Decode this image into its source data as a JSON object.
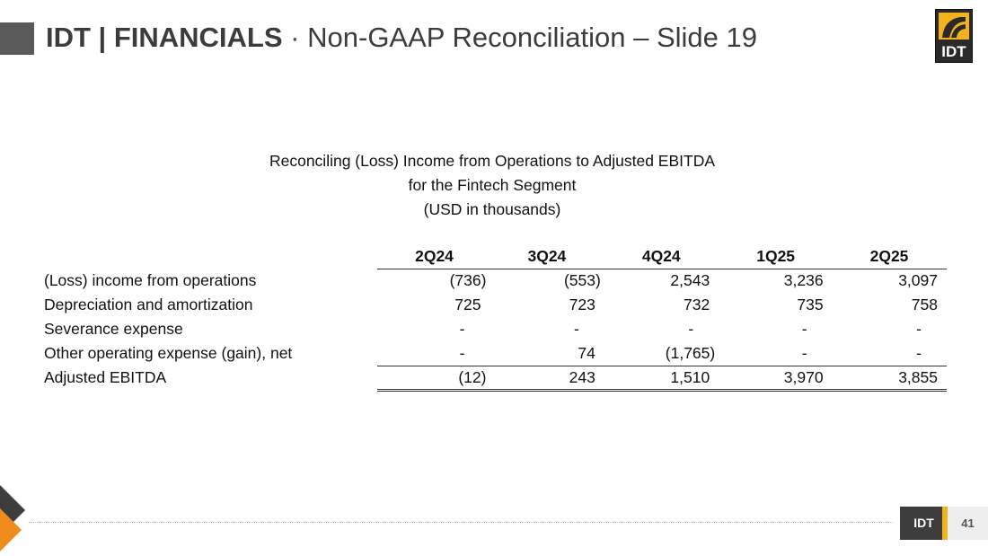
{
  "header": {
    "title_bold": "IDT | FINANCIALS",
    "title_sep": "·",
    "title_sub": "Non-GAAP Reconciliation – Slide 19"
  },
  "logo": {
    "text": "IDT",
    "icon": "idt-logo-icon"
  },
  "table": {
    "title_lines": [
      "Reconciling (Loss) Income from Operations to Adjusted EBITDA",
      "for the Fintech Segment",
      "(USD in thousands)"
    ],
    "columns": [
      "2Q24",
      "3Q24",
      "4Q24",
      "1Q25",
      "2Q25"
    ],
    "rows": [
      {
        "label": "(Loss) income from operations",
        "values": [
          "(736)",
          "(553)",
          "2,543",
          "3,236",
          "3,097"
        ]
      },
      {
        "label": "Depreciation and amortization",
        "values": [
          "725",
          "723",
          "732",
          "735",
          "758"
        ]
      },
      {
        "label": "Severance expense",
        "values": [
          "-",
          "-",
          "-",
          "-",
          "-"
        ]
      },
      {
        "label": "Other operating expense (gain), net",
        "values": [
          "-",
          "74",
          "(1,765)",
          "-",
          "-"
        ]
      },
      {
        "label": "Adjusted EBITDA",
        "values": [
          "(12)",
          "243",
          "1,510",
          "3,970",
          "3,855"
        ]
      }
    ]
  },
  "footer": {
    "brand": "IDT",
    "page_number": "41"
  },
  "colors": {
    "accent": "#f2b21b",
    "dark": "#3d3d3d"
  }
}
